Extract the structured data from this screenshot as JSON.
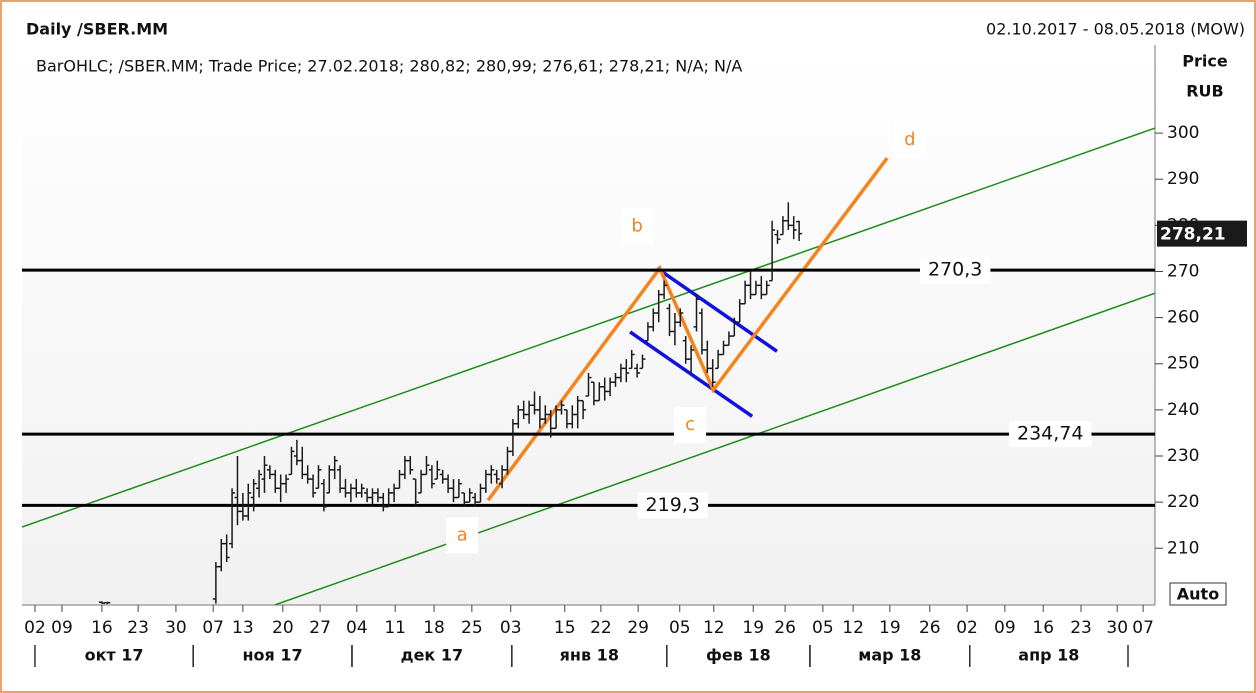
{
  "chart_data": {
    "type": "ohlc",
    "title": "Daily /SBER.MM",
    "date_range": "02.10.2017 - 08.05.2018 (MOW)",
    "legend": "BarOHLC; /SBER.MM; Trade Price; 27.02.2018; 280,82; 280,99; 276,61; 278,21; N/A; N/A",
    "y_label": "Price",
    "y_unit": "RUB",
    "scale_mode": "Auto",
    "bar_color": "#1a1a1a",
    "xlim": [
      -2.4,
      207.4
    ],
    "ylim": [
      197.7,
      319.1
    ],
    "yticks": [
      210,
      220,
      230,
      240,
      250,
      260,
      270,
      280,
      290,
      300
    ],
    "xticks": [
      {
        "value": 0,
        "label": "02"
      },
      {
        "value": 5,
        "label": "09"
      },
      {
        "value": 12.4,
        "label": "16"
      },
      {
        "value": 19.1,
        "label": "23"
      },
      {
        "value": 26.1,
        "label": "30"
      },
      {
        "value": 33,
        "label": "07"
      },
      {
        "value": 38.5,
        "label": "13"
      },
      {
        "value": 45.9,
        "label": "20"
      },
      {
        "value": 52.8,
        "label": "27"
      },
      {
        "value": 59.6,
        "label": "04"
      },
      {
        "value": 66.7,
        "label": "11"
      },
      {
        "value": 73.9,
        "label": "18"
      },
      {
        "value": 80.9,
        "label": "25"
      },
      {
        "value": 88.1,
        "label": "03"
      },
      {
        "value": 98.1,
        "label": "15"
      },
      {
        "value": 104.8,
        "label": "22"
      },
      {
        "value": 111.7,
        "label": "29"
      },
      {
        "value": 119.4,
        "label": "05"
      },
      {
        "value": 125.7,
        "label": "12"
      },
      {
        "value": 133,
        "label": "19"
      },
      {
        "value": 138.9,
        "label": "26"
      },
      {
        "value": 145.9,
        "label": "05"
      },
      {
        "value": 151.5,
        "label": "12"
      },
      {
        "value": 158.3,
        "label": "19"
      },
      {
        "value": 165.7,
        "label": "26"
      },
      {
        "value": 172.6,
        "label": "02"
      },
      {
        "value": 179.6,
        "label": "09"
      },
      {
        "value": 186.7,
        "label": "16"
      },
      {
        "value": 193.7,
        "label": "23"
      },
      {
        "value": 200.4,
        "label": "30"
      },
      {
        "value": 205.2,
        "label": "07"
      }
    ],
    "months": [
      {
        "label": "окт 17",
        "start": 0,
        "end": 29.3
      },
      {
        "label": "ноя 17",
        "start": 29.3,
        "end": 58.7
      },
      {
        "label": "дек 17",
        "start": 58.7,
        "end": 88.3
      },
      {
        "label": "янв 18",
        "start": 88.3,
        "end": 117
      },
      {
        "label": "фев 18",
        "start": 117,
        "end": 143.5
      },
      {
        "label": "мар 18",
        "start": 143.5,
        "end": 173.1
      },
      {
        "label": "апр 18",
        "start": 173.1,
        "end": 202.4
      }
    ],
    "bars": {
      "x": [
        12.4,
        13.4,
        33.5,
        34.5,
        35.5,
        36.5,
        37.5,
        38.5,
        39.5,
        40.5,
        41.5,
        42.5,
        43.5,
        44.5,
        45.5,
        46.5,
        47.5,
        48.5,
        49.5,
        50.5,
        51.5,
        52.5,
        53.5,
        54.5,
        55.5,
        56.5,
        57.5,
        58.5,
        59.5,
        60.5,
        61.5,
        62.5,
        63.5,
        64.5,
        65.5,
        66.5,
        67.5,
        68.5,
        69.5,
        70.5,
        71.5,
        72.5,
        73.5,
        74.5,
        75.5,
        76.5,
        77.5,
        78.5,
        79.5,
        80.5,
        81.5,
        82.5,
        83.5,
        84.5,
        85.5,
        86.5,
        87.5,
        88.5,
        89.5,
        90.5,
        91.5,
        92.5,
        93.5,
        94.5,
        95.5,
        96.5,
        97.5,
        98.5,
        99.5,
        100.5,
        101.5,
        102.5,
        103.5,
        104.5,
        105.5,
        106.5,
        107.5,
        108.5,
        109.5,
        110.5,
        111.5,
        112.5,
        113.5,
        114.5,
        115.5,
        116.5,
        117.5,
        118.5,
        119.5,
        120.5,
        121.5,
        122.5,
        123.5,
        124.5,
        125.5,
        126.5,
        127.5,
        128.5,
        129.5,
        130.5,
        131.5,
        132.5,
        133.5,
        134.5,
        135.5,
        136.5,
        137.5,
        138.5,
        139.5,
        140.5,
        141.5
      ],
      "open": [
        198.3,
        198.2,
        199,
        206,
        211,
        211,
        221,
        218,
        217,
        221,
        223,
        225,
        227,
        226,
        223,
        224,
        226,
        230,
        229,
        226,
        225,
        223,
        224,
        222,
        227,
        227,
        223,
        222,
        223,
        222,
        222,
        221,
        222,
        221,
        219,
        222,
        223,
        226,
        229,
        225,
        222,
        226,
        227,
        225,
        226,
        225,
        223,
        221,
        222,
        220,
        221,
        220,
        223,
        226,
        226,
        224,
        227,
        231,
        237,
        240,
        239,
        241,
        240,
        238,
        239,
        236,
        240,
        240,
        237,
        239,
        242,
        243,
        246,
        242,
        245,
        244,
        246,
        247,
        249,
        249,
        249,
        249,
        255,
        258,
        261,
        265,
        262,
        257,
        259,
        255,
        251,
        258,
        261,
        253,
        249,
        249,
        252,
        254,
        256,
        259,
        263,
        267,
        265,
        267,
        265,
        268,
        278,
        278,
        281,
        280,
        280.82
      ],
      "high": [
        198.5,
        198.4,
        207,
        212,
        213,
        223,
        230,
        222,
        224,
        225,
        227,
        230,
        228,
        227,
        226,
        226,
        232,
        233.5,
        232,
        228,
        226,
        228,
        225,
        228,
        230,
        228,
        225,
        224,
        225,
        224,
        223,
        223,
        223,
        222,
        223,
        224,
        227,
        230,
        230,
        225,
        227,
        230,
        228,
        229,
        227,
        226,
        225,
        225,
        222,
        223,
        222,
        224,
        227,
        228,
        227,
        228,
        232,
        238,
        241,
        242,
        242,
        244,
        243,
        241,
        240,
        241,
        242,
        240,
        241,
        243,
        242,
        248,
        246,
        246,
        247,
        247,
        248,
        250,
        251,
        253,
        250,
        252,
        259,
        262,
        266,
        268,
        263,
        261,
        262,
        256,
        254,
        265,
        262,
        255,
        251,
        253,
        255,
        257,
        260,
        264,
        268,
        270,
        268,
        269,
        268,
        281,
        279,
        282,
        285,
        282,
        280.99
      ],
      "low": [
        198,
        197.9,
        198,
        205,
        207,
        210,
        215,
        216,
        216,
        218,
        221,
        222,
        225,
        222,
        220,
        222,
        226,
        228,
        225,
        224,
        221,
        223,
        218,
        222,
        225,
        222,
        221,
        220,
        221,
        221,
        220,
        219,
        220,
        218,
        219,
        220,
        223,
        225,
        226,
        219,
        222,
        226,
        223,
        225,
        224,
        222,
        220,
        221,
        219,
        220,
        219,
        220,
        222,
        224,
        224,
        223,
        226,
        230,
        236,
        238,
        237,
        239,
        236,
        237,
        234,
        236,
        239,
        236,
        236,
        236,
        238,
        243,
        241,
        242,
        242,
        243,
        245,
        246,
        246,
        249,
        247,
        249,
        255,
        257,
        259,
        264,
        256,
        254,
        258,
        250,
        248,
        257,
        252,
        248,
        245,
        249,
        252,
        254,
        256,
        259,
        263,
        264,
        265,
        264,
        265,
        268,
        276,
        278,
        279,
        277,
        276.61
      ],
      "close": [
        198.1,
        198.2,
        206,
        211,
        208,
        222,
        218,
        217,
        222,
        224,
        226,
        228,
        226,
        223,
        224,
        225,
        231,
        229,
        226,
        225,
        222,
        227,
        219,
        227,
        229,
        223,
        222,
        223,
        222,
        223,
        221,
        222,
        221,
        219,
        222,
        223,
        226,
        229,
        227,
        220,
        226,
        228,
        224,
        227,
        225,
        223,
        221,
        224,
        220,
        222,
        220,
        223,
        226,
        227,
        225,
        227,
        231,
        237,
        240,
        239,
        241,
        240,
        238,
        239,
        236,
        240,
        241,
        237,
        239,
        242,
        240,
        247,
        242,
        245,
        244,
        246,
        247,
        249,
        248,
        252,
        248,
        251,
        258,
        261,
        265,
        267,
        257,
        259,
        261,
        251,
        253,
        264,
        253,
        249,
        246,
        252,
        254,
        256,
        259,
        263,
        267,
        265,
        267,
        265,
        267,
        279,
        277,
        281,
        280,
        279,
        278.21
      ]
    },
    "last_price": {
      "value": 278.21,
      "label": "278,21"
    },
    "hlines": {
      "color": "#000000",
      "values": [
        270.3,
        234.74,
        219.3
      ],
      "value_labels": [
        "270,3",
        "234,74",
        "219,3"
      ],
      "label_x": [
        170.4,
        188,
        118.1
      ]
    },
    "trend_lines": [
      {
        "color": "#1c8c1c",
        "x": [
          -2.4,
          207.4
        ],
        "values": [
          214.6,
          301.1
        ]
      },
      {
        "color": "#1c8c1c",
        "x": [
          44.4,
          207.4
        ],
        "values": [
          197.7,
          265.3
        ]
      },
      {
        "color": "#1010e0",
        "x": [
          115.2,
          137.4
        ],
        "values": [
          270.7,
          252.7
        ]
      },
      {
        "color": "#1010e0",
        "x": [
          110.2,
          132.8
        ],
        "values": [
          256.9,
          238.6
        ]
      },
      {
        "color": "#f5841f",
        "x": [
          83.9,
          115.7,
          125.6,
          157.8
        ],
        "values": [
          220.4,
          270.7,
          244.3,
          294.6
        ]
      }
    ],
    "wave_labels": {
      "color": "#f5841f",
      "labels": [
        "a",
        "b",
        "c",
        "d"
      ],
      "x": [
        79.1,
        111.5,
        121.3,
        162
      ],
      "values": [
        212.8,
        279.8,
        236.7,
        298.5
      ]
    }
  }
}
